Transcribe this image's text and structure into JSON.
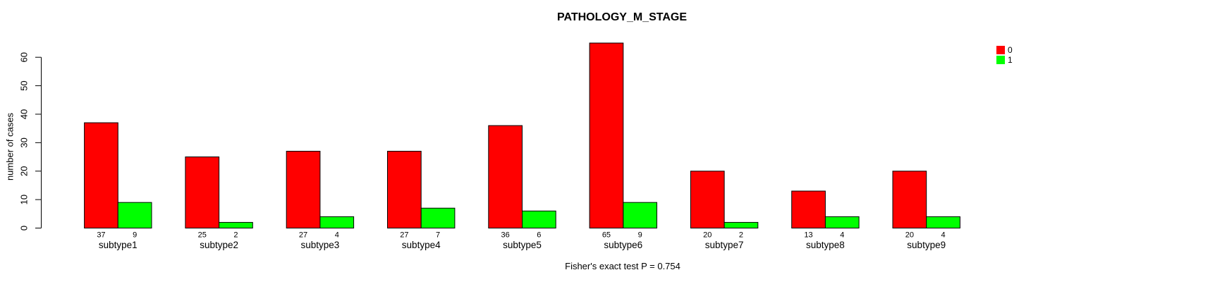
{
  "chart_data": {
    "type": "bar",
    "title": "PATHOLOGY_M_STAGE",
    "xlabel": "",
    "ylabel": "number of cases",
    "categories": [
      "subtype1",
      "subtype2",
      "subtype3",
      "subtype4",
      "subtype5",
      "subtype6",
      "subtype7",
      "subtype8",
      "subtype9"
    ],
    "series": [
      {
        "name": "0",
        "color": "#FF0000",
        "values": [
          37,
          25,
          27,
          27,
          36,
          65,
          20,
          13,
          20
        ]
      },
      {
        "name": "1",
        "color": "#00FF00",
        "values": [
          9,
          2,
          4,
          7,
          6,
          9,
          2,
          4,
          4
        ]
      }
    ],
    "yticks": [
      0,
      10,
      20,
      30,
      40,
      50,
      60
    ],
    "ylim": [
      0,
      65
    ],
    "grid": false,
    "bar_value_labels": true,
    "legend": {
      "position": "top-right",
      "entries": [
        "0",
        "1"
      ]
    },
    "annotation": "Fisher's exact test P = 0.754"
  }
}
